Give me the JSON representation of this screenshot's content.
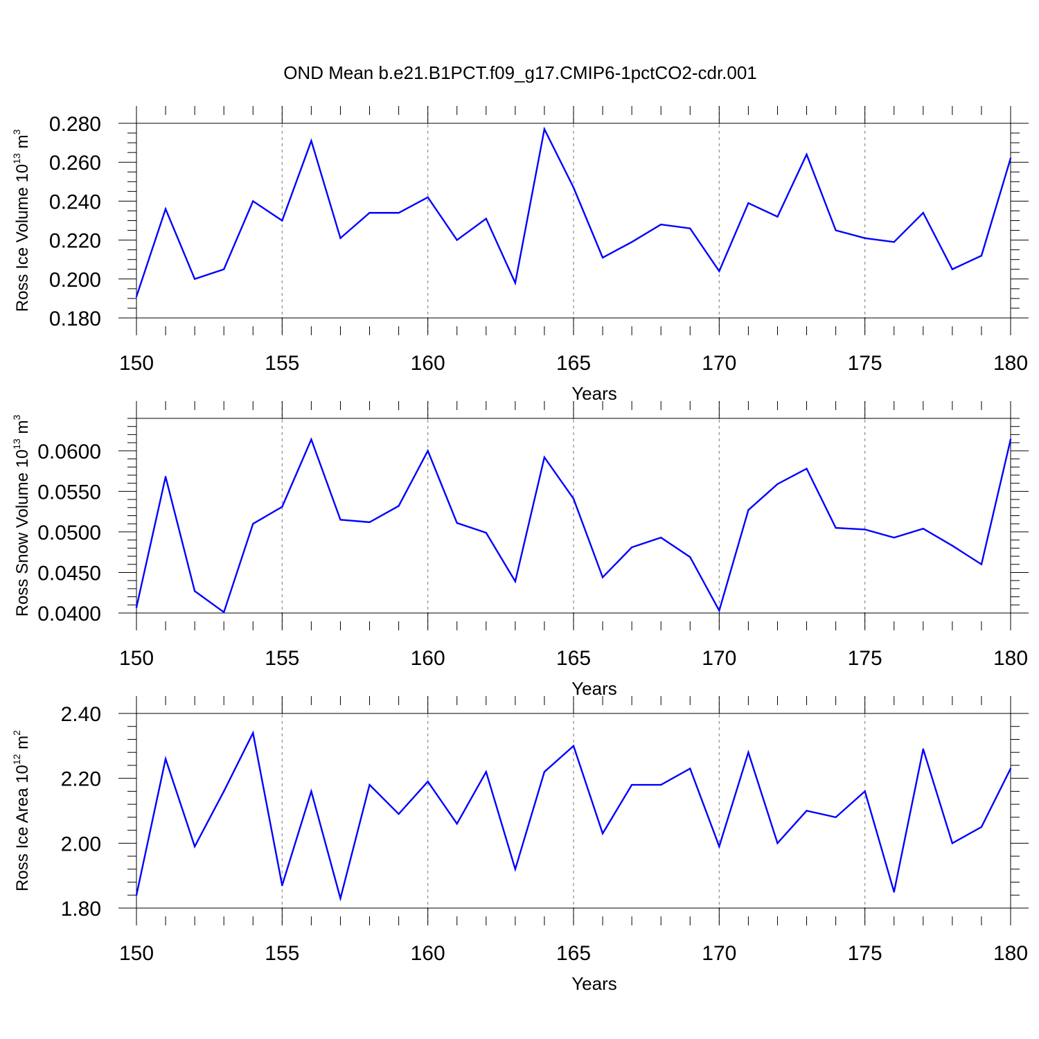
{
  "figure_title": "OND Mean b.e21.B1PCT.f09_g17.CMIP6-1pctCO2-cdr.001",
  "colors": {
    "series": "#0000ff",
    "frame": "#000000",
    "grid": "#8a8a8a",
    "background": "#ffffff"
  },
  "chart_data": [
    {
      "type": "line",
      "ylabel": "Ross Ice Volume 10",
      "ylabel_exp": "13",
      "ylabel_unit": " m",
      "ylabel_unit_exp": "3",
      "xlabel": "Years",
      "xlim": [
        150,
        180
      ],
      "ylim": [
        0.18,
        0.28
      ],
      "x_ticks": [
        150,
        155,
        160,
        165,
        170,
        175,
        180
      ],
      "x_tick_labels": [
        "150",
        "155",
        "160",
        "165",
        "170",
        "175",
        "180"
      ],
      "y_ticks": [
        0.18,
        0.2,
        0.22,
        0.24,
        0.26,
        0.28
      ],
      "y_tick_labels": [
        "0.180",
        "0.200",
        "0.220",
        "0.240",
        "0.260",
        "0.280"
      ],
      "y_minor_step": 0.005,
      "x_minor_step": 1,
      "grid_x": true,
      "x": [
        150,
        151,
        152,
        153,
        154,
        155,
        156,
        157,
        158,
        159,
        160,
        161,
        162,
        163,
        164,
        165,
        166,
        167,
        168,
        169,
        170,
        171,
        172,
        173,
        174,
        175,
        176,
        177,
        178,
        179,
        180
      ],
      "series": [
        {
          "values": [
            0.191,
            0.236,
            0.2,
            0.205,
            0.24,
            0.23,
            0.271,
            0.221,
            0.234,
            0.234,
            0.242,
            0.22,
            0.231,
            0.198,
            0.277,
            0.247,
            0.211,
            0.219,
            0.228,
            0.226,
            0.204,
            0.239,
            0.232,
            0.264,
            0.225,
            0.221,
            0.219,
            0.234,
            0.205,
            0.212,
            0.262
          ]
        }
      ]
    },
    {
      "type": "line",
      "ylabel": "Ross Snow Volume 10",
      "ylabel_exp": "13",
      "ylabel_unit": " m",
      "ylabel_unit_exp": "3",
      "xlabel": "Years",
      "xlim": [
        150,
        180
      ],
      "ylim": [
        0.04,
        0.064
      ],
      "x_ticks": [
        150,
        155,
        160,
        165,
        170,
        175,
        180
      ],
      "x_tick_labels": [
        "150",
        "155",
        "160",
        "165",
        "170",
        "175",
        "180"
      ],
      "y_ticks": [
        0.04,
        0.045,
        0.05,
        0.055,
        0.06
      ],
      "y_tick_labels": [
        "0.0400",
        "0.0450",
        "0.0500",
        "0.0550",
        "0.0600"
      ],
      "y_minor_step": 0.001,
      "x_minor_step": 1,
      "grid_x": true,
      "x": [
        150,
        151,
        152,
        153,
        154,
        155,
        156,
        157,
        158,
        159,
        160,
        161,
        162,
        163,
        164,
        165,
        166,
        167,
        168,
        169,
        170,
        171,
        172,
        173,
        174,
        175,
        176,
        177,
        178,
        179,
        180
      ],
      "series": [
        {
          "values": [
            0.0407,
            0.0568,
            0.0427,
            0.0401,
            0.051,
            0.0531,
            0.0614,
            0.0515,
            0.0512,
            0.0532,
            0.06,
            0.0511,
            0.0499,
            0.0439,
            0.0592,
            0.0541,
            0.0444,
            0.0481,
            0.0493,
            0.0469,
            0.0403,
            0.0527,
            0.0559,
            0.0578,
            0.0505,
            0.0503,
            0.0493,
            0.0504,
            0.0483,
            0.046,
            0.0614
          ]
        }
      ]
    },
    {
      "type": "line",
      "ylabel": "Ross Ice Area 10",
      "ylabel_exp": "12",
      "ylabel_unit": " m",
      "ylabel_unit_exp": "2",
      "xlabel": "Years",
      "xlim": [
        150,
        180
      ],
      "ylim": [
        1.8,
        2.4
      ],
      "x_ticks": [
        150,
        155,
        160,
        165,
        170,
        175,
        180
      ],
      "x_tick_labels": [
        "150",
        "155",
        "160",
        "165",
        "170",
        "175",
        "180"
      ],
      "y_ticks": [
        1.8,
        2.0,
        2.2,
        2.4
      ],
      "y_tick_labels": [
        "1.80",
        "2.00",
        "2.20",
        "2.40"
      ],
      "y_minor_step": 0.04,
      "x_minor_step": 1,
      "grid_x": true,
      "x": [
        150,
        151,
        152,
        153,
        154,
        155,
        156,
        157,
        158,
        159,
        160,
        161,
        162,
        163,
        164,
        165,
        166,
        167,
        168,
        169,
        170,
        171,
        172,
        173,
        174,
        175,
        176,
        177,
        178,
        179,
        180
      ],
      "series": [
        {
          "values": [
            1.84,
            2.26,
            1.99,
            2.16,
            2.34,
            1.87,
            2.16,
            1.83,
            2.18,
            2.09,
            2.19,
            2.06,
            2.22,
            1.92,
            2.22,
            2.3,
            2.03,
            2.18,
            2.18,
            2.23,
            1.99,
            2.28,
            2.0,
            2.1,
            2.08,
            2.16,
            1.85,
            2.29,
            2.0,
            2.05,
            2.23
          ]
        }
      ]
    }
  ]
}
